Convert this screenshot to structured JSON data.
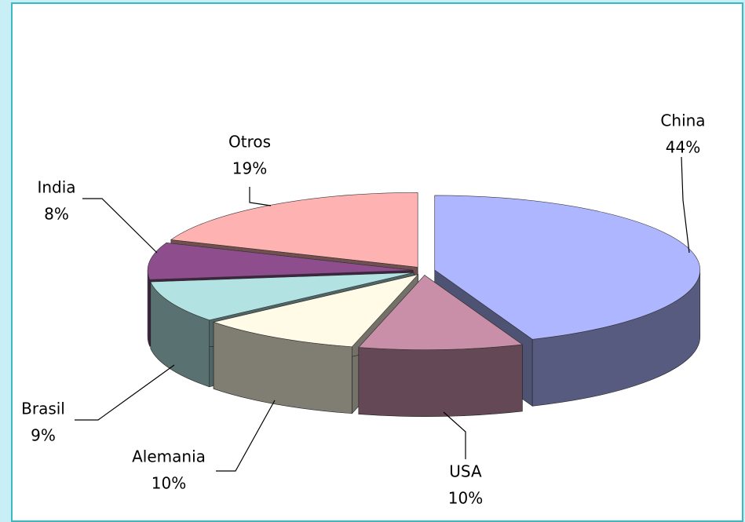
{
  "chart_data": {
    "type": "pie",
    "categories": [
      "China",
      "USA",
      "Alemania",
      "Brasil",
      "India",
      "Otros"
    ],
    "values": [
      44,
      10,
      10,
      9,
      8,
      19
    ],
    "value_labels": [
      "44%",
      "10%",
      "10%",
      "9%",
      "8%",
      "19%"
    ],
    "colors": [
      "#aeb6ff",
      "#c98fa9",
      "#fffbe6",
      "#b2e2e2",
      "#8e4e8e",
      "#ffb2b2"
    ]
  }
}
